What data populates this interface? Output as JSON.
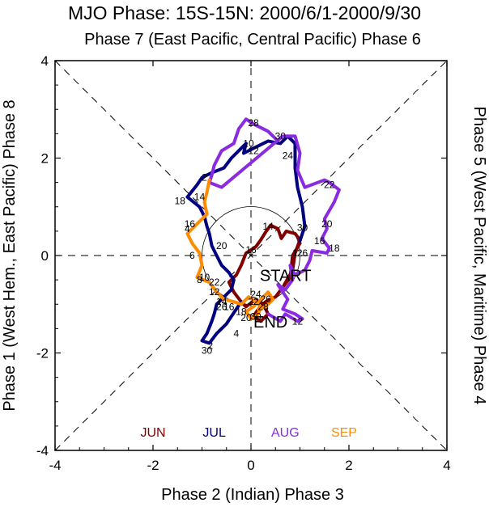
{
  "chart_data": {
    "type": "line",
    "title": "MJO Phase: 15S-15N: 2000/6/1-2000/9/30",
    "top_label": "Phase 7 (East Pacific, Central Pacific) Phase 6",
    "bottom_label": "Phase 2 (Indian) Phase 3",
    "left_label": "Phase 1 (West Hem., East Pacific) Phase 8",
    "right_label": "Phase 5 (West Pacific, Maritime) Phase 4",
    "xlim": [
      -4,
      4
    ],
    "ylim": [
      -4,
      4
    ],
    "x_ticks": [
      "-4",
      "-2",
      "0",
      "2",
      "4"
    ],
    "y_ticks": [
      "-4",
      "-2",
      "0",
      "2",
      "4"
    ],
    "grid": false,
    "start_label": "START",
    "end_label": "END",
    "series": [
      {
        "name": "JUN",
        "color": "#800000",
        "points": [
          [
            0.68,
            -0.6
          ],
          [
            0.85,
            -0.3
          ],
          [
            0.9,
            0.05
          ],
          [
            1.0,
            0.32
          ],
          [
            0.9,
            0.45
          ],
          [
            0.72,
            0.5
          ],
          [
            0.62,
            0.35
          ],
          [
            0.55,
            0.55
          ],
          [
            0.4,
            0.62
          ],
          [
            0.3,
            0.48
          ],
          [
            0.2,
            0.32
          ],
          [
            0.1,
            0.18
          ],
          [
            -0.1,
            0.05
          ],
          [
            -0.2,
            -0.2
          ],
          [
            -0.3,
            -0.4
          ],
          [
            -0.45,
            -0.55
          ],
          [
            -0.35,
            -0.75
          ],
          [
            -0.2,
            -0.95
          ],
          [
            -0.1,
            -1.05
          ],
          [
            0.1,
            -0.9
          ],
          [
            0.25,
            -1.0
          ],
          [
            0.35,
            -1.2
          ],
          [
            0.2,
            -1.35
          ],
          [
            0.05,
            -1.25
          ],
          [
            0.15,
            -1.1
          ],
          [
            0.3,
            -0.95
          ],
          [
            0.5,
            -0.85
          ],
          [
            0.8,
            -0.45
          ],
          [
            0.85,
            0.0
          ],
          [
            1.0,
            0.25
          ]
        ],
        "labels": [
          {
            "text": "1",
            "x": 0.9,
            "y": 0.05
          },
          {
            "text": "14",
            "x": 0.35,
            "y": 0.6
          },
          {
            "text": "16",
            "x": 0.0,
            "y": 0.12
          },
          {
            "text": "26",
            "x": 1.05,
            "y": 0.05
          },
          {
            "text": "30",
            "x": 1.05,
            "y": 0.57
          }
        ]
      },
      {
        "name": "JUL",
        "color": "#000080",
        "points": [
          [
            1.0,
            0.3
          ],
          [
            1.1,
            0.6
          ],
          [
            1.05,
            1.0
          ],
          [
            0.95,
            1.4
          ],
          [
            0.9,
            1.8
          ],
          [
            0.9,
            2.3
          ],
          [
            0.75,
            2.45
          ],
          [
            0.6,
            2.3
          ],
          [
            0.35,
            2.35
          ],
          [
            0.05,
            2.2
          ],
          [
            -0.15,
            2.1
          ],
          [
            -0.1,
            2.3
          ],
          [
            -0.4,
            2.0
          ],
          [
            -0.55,
            1.8
          ],
          [
            -0.8,
            1.7
          ],
          [
            -1.0,
            1.6
          ],
          [
            -1.1,
            1.45
          ],
          [
            -1.3,
            1.2
          ],
          [
            -1.05,
            1.0
          ],
          [
            -0.95,
            0.8
          ],
          [
            -0.9,
            0.6
          ],
          [
            -0.85,
            0.45
          ],
          [
            -0.8,
            0.2
          ],
          [
            -0.7,
            0.0
          ],
          [
            -0.6,
            -0.2
          ],
          [
            -0.45,
            -0.35
          ],
          [
            -0.35,
            -0.5
          ],
          [
            -0.4,
            -0.7
          ],
          [
            -0.55,
            -0.85
          ],
          [
            -0.7,
            -1.0
          ],
          [
            -0.75,
            -1.2
          ],
          [
            -0.8,
            -1.35
          ],
          [
            -0.9,
            -1.6
          ],
          [
            -1.0,
            -1.75
          ],
          [
            -0.85,
            -1.8
          ],
          [
            -0.7,
            -1.6
          ],
          [
            -0.5,
            -1.4
          ],
          [
            -0.4,
            -1.25
          ],
          [
            -0.3,
            -1.1
          ],
          [
            -0.2,
            -0.95
          ]
        ],
        "labels": [
          {
            "text": "12",
            "x": 0.05,
            "y": 2.15
          },
          {
            "text": "10",
            "x": -0.05,
            "y": 2.3
          },
          {
            "text": "14",
            "x": -1.05,
            "y": 1.2
          },
          {
            "text": "16",
            "x": -1.25,
            "y": 0.65
          },
          {
            "text": "18",
            "x": -1.45,
            "y": 1.12
          },
          {
            "text": "20",
            "x": -0.6,
            "y": 0.2
          },
          {
            "text": "22",
            "x": -0.75,
            "y": -0.55
          },
          {
            "text": "26",
            "x": -0.6,
            "y": -1.05
          },
          {
            "text": "30",
            "x": -0.9,
            "y": -1.95
          },
          {
            "text": "2",
            "x": -0.83,
            "y": -1.85
          },
          {
            "text": "4",
            "x": -0.3,
            "y": -1.6
          }
        ]
      },
      {
        "name": "AUG",
        "color": "#8a2be2",
        "points": [
          [
            0.5,
            2.4
          ],
          [
            0.35,
            2.55
          ],
          [
            0.05,
            2.7
          ],
          [
            -0.1,
            2.8
          ],
          [
            -0.25,
            2.6
          ],
          [
            -0.35,
            2.3
          ],
          [
            -0.6,
            2.15
          ],
          [
            -0.75,
            1.85
          ],
          [
            -0.8,
            1.65
          ],
          [
            -0.85,
            1.5
          ],
          [
            -0.6,
            1.4
          ],
          [
            0.65,
            2.45
          ],
          [
            0.9,
            2.45
          ],
          [
            1.0,
            2.1
          ],
          [
            0.95,
            1.75
          ],
          [
            1.1,
            1.4
          ],
          [
            1.5,
            1.55
          ],
          [
            1.6,
            1.5
          ],
          [
            1.8,
            1.35
          ],
          [
            1.7,
            1.1
          ],
          [
            1.5,
            0.75
          ],
          [
            1.55,
            0.55
          ],
          [
            1.45,
            0.35
          ],
          [
            1.6,
            0.15
          ],
          [
            1.55,
            0.05
          ],
          [
            1.25,
            0.1
          ],
          [
            1.2,
            -0.1
          ],
          [
            1.1,
            -0.3
          ],
          [
            0.9,
            -0.4
          ],
          [
            0.8,
            -0.2
          ],
          [
            0.85,
            -0.5
          ],
          [
            0.7,
            -0.7
          ],
          [
            0.55,
            -0.6
          ],
          [
            0.75,
            -0.9
          ],
          [
            0.65,
            -1.1
          ],
          [
            0.9,
            -1.2
          ],
          [
            1.05,
            -1.3
          ],
          [
            0.95,
            -1.35
          ],
          [
            0.7,
            -1.2
          ],
          [
            0.6,
            -1.35
          ],
          [
            0.35,
            -1.2
          ]
        ],
        "labels": [
          {
            "text": "28",
            "x": 0.05,
            "y": 2.72
          },
          {
            "text": "30",
            "x": 0.6,
            "y": 2.45
          },
          {
            "text": "24",
            "x": 0.75,
            "y": 2.05
          },
          {
            "text": "22",
            "x": 1.6,
            "y": 1.45
          },
          {
            "text": "20",
            "x": 1.55,
            "y": 0.65
          },
          {
            "text": "18",
            "x": 1.7,
            "y": 0.15
          },
          {
            "text": "16",
            "x": 1.4,
            "y": 0.3
          },
          {
            "text": "12",
            "x": 0.95,
            "y": -1.35
          }
        ]
      },
      {
        "name": "SEP",
        "color": "#ff8c00",
        "points": [
          [
            -0.85,
            1.55
          ],
          [
            -0.9,
            1.3
          ],
          [
            -0.95,
            1.1
          ],
          [
            -0.9,
            0.85
          ],
          [
            -1.1,
            0.65
          ],
          [
            -1.3,
            0.45
          ],
          [
            -1.2,
            0.25
          ],
          [
            -1.05,
            0.05
          ],
          [
            -1.0,
            -0.2
          ],
          [
            -1.1,
            -0.45
          ],
          [
            -0.85,
            -0.55
          ],
          [
            -0.7,
            -0.75
          ],
          [
            -0.55,
            -0.9
          ],
          [
            -0.35,
            -0.95
          ],
          [
            -0.2,
            -1.0
          ],
          [
            -0.05,
            -0.85
          ],
          [
            0.1,
            -0.95
          ],
          [
            0.2,
            -1.05
          ],
          [
            0.15,
            -1.2
          ],
          [
            0.0,
            -1.3
          ],
          [
            -0.1,
            -1.15
          ],
          [
            0.05,
            -1.05
          ],
          [
            0.2,
            -0.9
          ],
          [
            0.35,
            -0.75
          ],
          [
            0.45,
            -0.9
          ],
          [
            0.3,
            -1.05
          ],
          [
            0.15,
            -1.1
          ]
        ],
        "labels": [
          {
            "text": "2",
            "x": -0.95,
            "y": 1.6
          },
          {
            "text": "4",
            "x": -1.3,
            "y": 0.55
          },
          {
            "text": "6",
            "x": -1.2,
            "y": 0.0
          },
          {
            "text": "8",
            "x": -1.05,
            "y": -0.5
          },
          {
            "text": "10",
            "x": -0.95,
            "y": -0.45
          },
          {
            "text": "12",
            "x": -0.75,
            "y": -0.75
          },
          {
            "text": "14",
            "x": -0.6,
            "y": -0.95
          },
          {
            "text": "16",
            "x": -0.45,
            "y": -1.05
          },
          {
            "text": "18",
            "x": -0.2,
            "y": -1.15
          },
          {
            "text": "20",
            "x": -0.1,
            "y": -1.28
          },
          {
            "text": "22",
            "x": 0.05,
            "y": -0.95
          },
          {
            "text": "24",
            "x": 0.1,
            "y": -0.8
          },
          {
            "text": "26",
            "x": 0.3,
            "y": -0.9
          },
          {
            "text": "28",
            "x": 0.25,
            "y": -1.05
          },
          {
            "text": "30",
            "x": 0.1,
            "y": -1.25
          }
        ]
      }
    ]
  }
}
